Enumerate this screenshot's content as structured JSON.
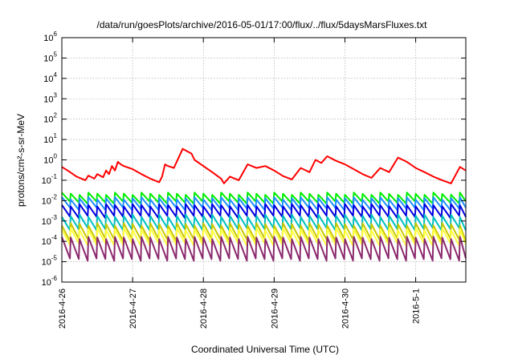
{
  "chart_data": {
    "type": "line",
    "title": "/data/run/goesPlots/archive/2016-05-01/17:00/flux/../flux/5daysMarsFluxes.txt",
    "xlabel": "Coordinated Universal Time (UTC)",
    "ylabel": "protons/cm²-s-sr-MeV",
    "yscale": "log",
    "ylim": [
      1e-06,
      1000000.0
    ],
    "xlim": [
      "2016-04-26 00:00",
      "2016-05-01 17:00"
    ],
    "xticks": [
      "2016-4-26",
      "2016-4-27",
      "2016-4-28",
      "2016-4-29",
      "2016-4-30",
      "2016-5-1"
    ],
    "yticks": [
      {
        "base": "10",
        "exp": "-6"
      },
      {
        "base": "10",
        "exp": "-5"
      },
      {
        "base": "10",
        "exp": "-4"
      },
      {
        "base": "10",
        "exp": "-3"
      },
      {
        "base": "10",
        "exp": "-2"
      },
      {
        "base": "10",
        "exp": "-1"
      },
      {
        "base": "10",
        "exp": "0"
      },
      {
        "base": "10",
        "exp": "1"
      },
      {
        "base": "10",
        "exp": "2"
      },
      {
        "base": "10",
        "exp": "3"
      },
      {
        "base": "10",
        "exp": "4"
      },
      {
        "base": "10",
        "exp": "5"
      },
      {
        "base": "10",
        "exp": "6"
      }
    ],
    "grid": true,
    "sawtooth_period_hours": 3,
    "series": [
      {
        "color": "#ff0000",
        "x_hours": [
          0,
          2,
          5,
          8,
          9,
          11,
          12,
          14,
          15,
          16,
          17,
          18,
          19,
          20,
          21,
          24,
          27,
          30,
          33,
          34,
          35,
          36,
          38,
          41,
          44,
          45,
          48,
          51,
          54,
          55,
          57,
          60,
          63,
          66,
          69,
          72,
          75,
          78,
          81,
          84,
          86,
          88,
          90,
          93,
          96,
          99,
          102,
          105,
          108,
          111,
          114,
          117,
          120,
          123,
          126,
          129,
          132,
          135,
          137
        ],
        "y": [
          0.45,
          0.3,
          0.15,
          0.1,
          0.17,
          0.12,
          0.2,
          0.14,
          0.3,
          0.2,
          0.5,
          0.3,
          0.8,
          0.6,
          0.5,
          0.35,
          0.2,
          0.12,
          0.08,
          0.15,
          0.6,
          0.5,
          0.4,
          3.5,
          2.0,
          1.0,
          0.5,
          0.25,
          0.12,
          0.07,
          0.15,
          0.1,
          0.6,
          0.4,
          0.5,
          0.3,
          0.16,
          0.11,
          0.4,
          0.25,
          1.0,
          0.7,
          1.5,
          0.9,
          0.6,
          0.35,
          0.2,
          0.13,
          0.4,
          0.25,
          1.3,
          0.8,
          0.4,
          0.25,
          0.15,
          0.1,
          0.07,
          0.45,
          0.3
        ]
      },
      {
        "color": "#00ee00",
        "base_top": 0.022,
        "base_bottom": 0.008
      },
      {
        "color": "#1e90ff",
        "base_top": 0.013,
        "base_bottom": 0.004
      },
      {
        "color": "#0000e0",
        "base_top": 0.006,
        "base_bottom": 0.0016
      },
      {
        "color": "#00c0c0",
        "base_top": 0.0018,
        "base_bottom": 0.0004
      },
      {
        "color": "#c8c800",
        "base_top": 0.0007,
        "base_bottom": 0.00012
      },
      {
        "color": "#ffff40",
        "base_top": 0.0004,
        "base_bottom": 7e-05
      },
      {
        "color": "#8b2a6e",
        "base_top": 0.00015,
        "base_bottom": 1.3e-05
      }
    ]
  }
}
